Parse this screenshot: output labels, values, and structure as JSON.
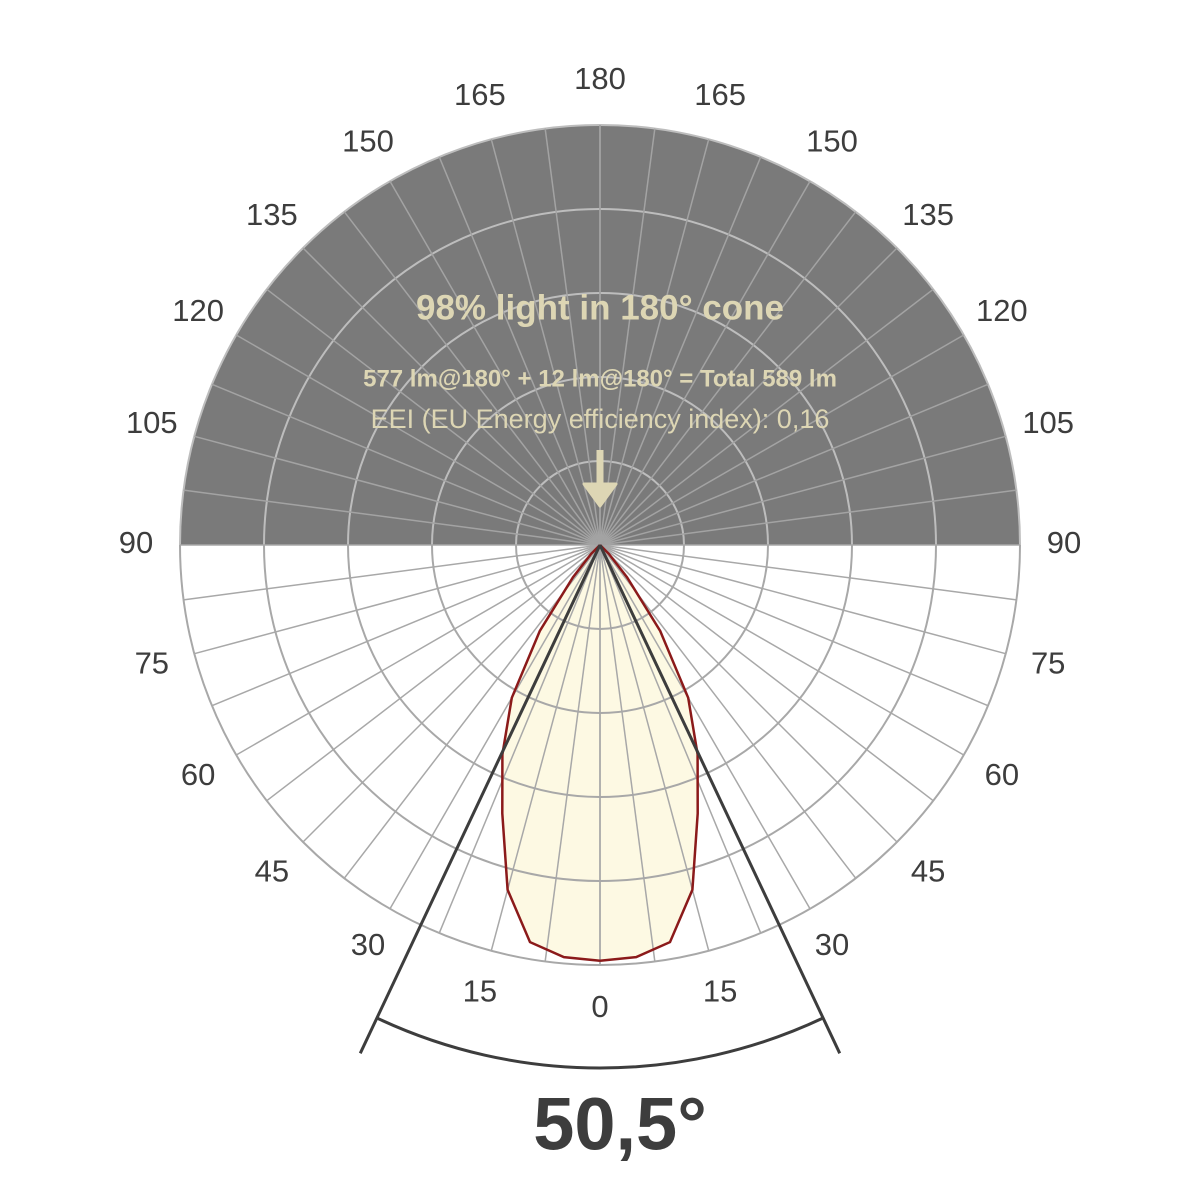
{
  "chart_data": {
    "type": "polar",
    "title": "98% light in 180° cone",
    "subtitle": "577 lm@180° + 12 lm@180° = Total 589 lm",
    "note": "EEI (EU Energy efficiency index): 0,16",
    "angle_ticks": [
      0,
      15,
      30,
      45,
      60,
      75,
      90,
      105,
      120,
      135,
      150,
      165,
      180
    ],
    "rlim": [
      0,
      1
    ],
    "angles": [
      0,
      5,
      10,
      15,
      20,
      25,
      30,
      35,
      40,
      45,
      50
    ],
    "series": [
      {
        "color": "#8b1a1a",
        "values": [
          0.99,
          0.985,
          0.96,
          0.85,
          0.68,
          0.55,
          0.42,
          0.25,
          0.1,
          0.03,
          0
        ]
      }
    ],
    "beam_angle": {
      "value": 50.5,
      "label": "50,5°"
    }
  }
}
